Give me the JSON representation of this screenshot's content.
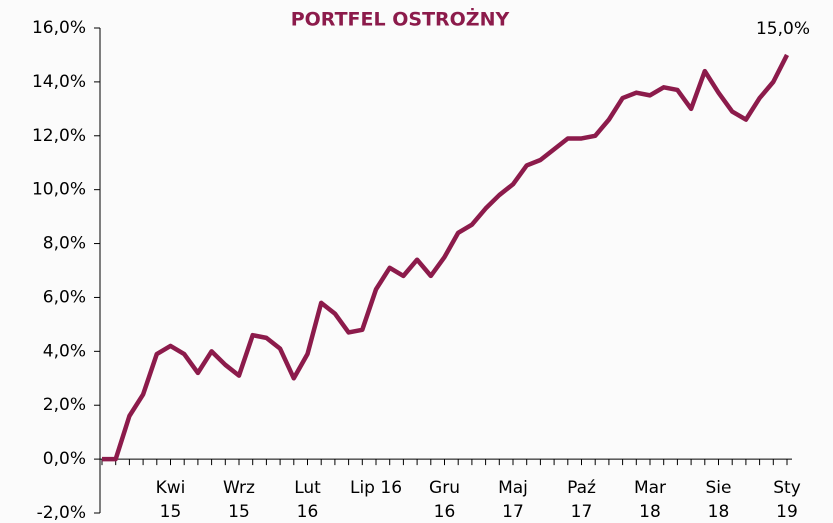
{
  "chart_data": {
    "type": "line",
    "title": "PORTFEL OSTROŻNY",
    "categories": [
      null,
      null,
      null,
      null,
      null,
      "Kwi\n15",
      null,
      null,
      null,
      null,
      "Wrz\n15",
      null,
      null,
      null,
      null,
      "Lut\n16",
      null,
      null,
      null,
      null,
      "Lip 16",
      null,
      null,
      null,
      null,
      "Gru\n16",
      null,
      null,
      null,
      null,
      "Maj\n17",
      null,
      null,
      null,
      null,
      "Paź\n17",
      null,
      null,
      null,
      null,
      "Mar\n18",
      null,
      null,
      null,
      null,
      "Sie\n18",
      null,
      null,
      null,
      null,
      "Sty\n19"
    ],
    "series": [
      {
        "name": "PORTFEL OSTROŻNY",
        "color": "#8c1b4b",
        "values": [
          0,
          0,
          1.6,
          2.4,
          3.9,
          4.2,
          3.9,
          3.2,
          4.0,
          3.5,
          3.1,
          4.6,
          4.5,
          4.1,
          3.0,
          3.9,
          5.8,
          5.4,
          4.7,
          4.8,
          6.3,
          7.1,
          6.8,
          7.4,
          6.8,
          7.5,
          8.4,
          8.7,
          9.3,
          9.8,
          10.2,
          10.9,
          11.1,
          11.5,
          11.9,
          11.9,
          12.0,
          12.6,
          13.4,
          13.6,
          13.5,
          13.8,
          13.7,
          13.0,
          14.4,
          13.6,
          12.9,
          12.6,
          13.4,
          14.0,
          15.0
        ],
        "value_labels": [
          null,
          null,
          null,
          null,
          null,
          null,
          null,
          null,
          null,
          null,
          null,
          null,
          null,
          null,
          null,
          null,
          null,
          null,
          null,
          null,
          null,
          null,
          null,
          null,
          null,
          null,
          null,
          null,
          null,
          null,
          null,
          null,
          null,
          null,
          null,
          null,
          null,
          null,
          null,
          null,
          null,
          null,
          null,
          null,
          null,
          null,
          null,
          null,
          null,
          null,
          "15,0%"
        ]
      }
    ],
    "ylim": [
      -2,
      16
    ],
    "yticks": [
      {
        "value": -2,
        "label": "-2,0%"
      },
      {
        "value": 0,
        "label": "0,0%"
      },
      {
        "value": 2,
        "label": "2,0%"
      },
      {
        "value": 4,
        "label": "4,0%"
      },
      {
        "value": 6,
        "label": "6,0%"
      },
      {
        "value": 8,
        "label": "8,0%"
      },
      {
        "value": 10,
        "label": "10,0%"
      },
      {
        "value": 12,
        "label": "12,0%"
      },
      {
        "value": 14,
        "label": "14,0%"
      },
      {
        "value": 16,
        "label": "16,0%"
      }
    ],
    "grid": false
  }
}
